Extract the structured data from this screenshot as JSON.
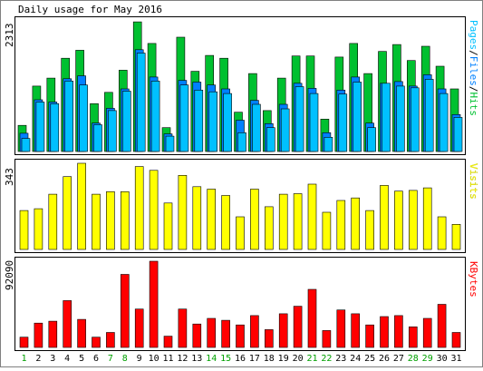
{
  "title": "Daily usage for May 2016",
  "colors": {
    "hits": "#00C030",
    "files": "#0080FF",
    "pages": "#00C0FF",
    "visits": "#FFFF00",
    "kbytes": "#FF0000",
    "weekend_label": "#00A000",
    "weekday_label": "#000000",
    "axis_text": "#000000"
  },
  "chart_data": [
    {
      "type": "bar",
      "panel": "hits-files-pages",
      "max_label": "2313",
      "ylim": [
        0,
        2313
      ],
      "side_label_parts": [
        {
          "text": "Pages",
          "color": "#00C0FF"
        },
        {
          "text": "/",
          "color": "#000000"
        },
        {
          "text": "Files",
          "color": "#0080FF"
        },
        {
          "text": "/",
          "color": "#000000"
        },
        {
          "text": "Hits",
          "color": "#00C030"
        }
      ],
      "categories": [
        "1",
        "2",
        "3",
        "4",
        "5",
        "6",
        "7",
        "8",
        "9",
        "10",
        "11",
        "12",
        "13",
        "14",
        "15",
        "16",
        "17",
        "18",
        "19",
        "20",
        "21",
        "22",
        "23",
        "24",
        "25",
        "26",
        "27",
        "28",
        "29",
        "30",
        "31"
      ],
      "series": [
        {
          "key": "hits",
          "values": [
            460,
            1150,
            1290,
            1640,
            1780,
            840,
            1040,
            1430,
            2280,
            1900,
            420,
            2010,
            1410,
            1690,
            1640,
            690,
            1370,
            720,
            1290,
            1680,
            1680,
            570,
            1660,
            1900,
            1370,
            1760,
            1880,
            1600,
            1850,
            1500,
            1100
          ]
        },
        {
          "key": "files",
          "values": [
            320,
            910,
            870,
            1280,
            1330,
            500,
            760,
            1100,
            1790,
            1310,
            310,
            1250,
            1220,
            1170,
            1100,
            550,
            900,
            490,
            830,
            1200,
            1110,
            330,
            1080,
            1310,
            500,
            1200,
            1230,
            1150,
            1350,
            1100,
            650
          ]
        },
        {
          "key": "pages",
          "values": [
            230,
            870,
            840,
            1240,
            1170,
            470,
            720,
            1060,
            1730,
            1240,
            270,
            1170,
            1080,
            1050,
            1020,
            330,
            830,
            420,
            750,
            1140,
            1020,
            250,
            1010,
            1220,
            420,
            1200,
            1150,
            1120,
            1270,
            1020,
            600
          ]
        }
      ]
    },
    {
      "type": "bar",
      "panel": "visits",
      "max_label": "343",
      "ylim": [
        0,
        343
      ],
      "side_label": "Visits",
      "categories": [
        "1",
        "2",
        "3",
        "4",
        "5",
        "6",
        "7",
        "8",
        "9",
        "10",
        "11",
        "12",
        "13",
        "14",
        "15",
        "16",
        "17",
        "18",
        "19",
        "20",
        "21",
        "22",
        "23",
        "24",
        "25",
        "26",
        "27",
        "28",
        "29",
        "30",
        "31"
      ],
      "series": [
        {
          "key": "visits",
          "values": [
            155,
            162,
            220,
            290,
            343,
            220,
            230,
            230,
            330,
            315,
            185,
            295,
            250,
            240,
            215,
            130,
            240,
            170,
            220,
            222,
            260,
            148,
            195,
            205,
            155,
            255,
            232,
            235,
            245,
            130,
            100
          ]
        }
      ]
    },
    {
      "type": "bar",
      "panel": "kbytes",
      "max_label": "92090",
      "ylim": [
        0,
        92090
      ],
      "side_label": "KBytes",
      "categories": [
        "1",
        "2",
        "3",
        "4",
        "5",
        "6",
        "7",
        "8",
        "9",
        "10",
        "11",
        "12",
        "13",
        "14",
        "15",
        "16",
        "17",
        "18",
        "19",
        "20",
        "21",
        "22",
        "23",
        "24",
        "25",
        "26",
        "27",
        "28",
        "29",
        "30",
        "31"
      ],
      "weekend_days": [
        "1",
        "7",
        "8",
        "14",
        "15",
        "21",
        "22",
        "28",
        "29"
      ],
      "series": [
        {
          "key": "kbytes",
          "values": [
            11000,
            26000,
            28000,
            50000,
            30000,
            11000,
            16000,
            78000,
            41000,
            92090,
            12000,
            41000,
            25000,
            31000,
            29000,
            24000,
            34000,
            19000,
            36000,
            44000,
            62000,
            18000,
            40000,
            36000,
            24000,
            33000,
            34000,
            22000,
            31000,
            46000,
            16000
          ]
        }
      ]
    }
  ]
}
